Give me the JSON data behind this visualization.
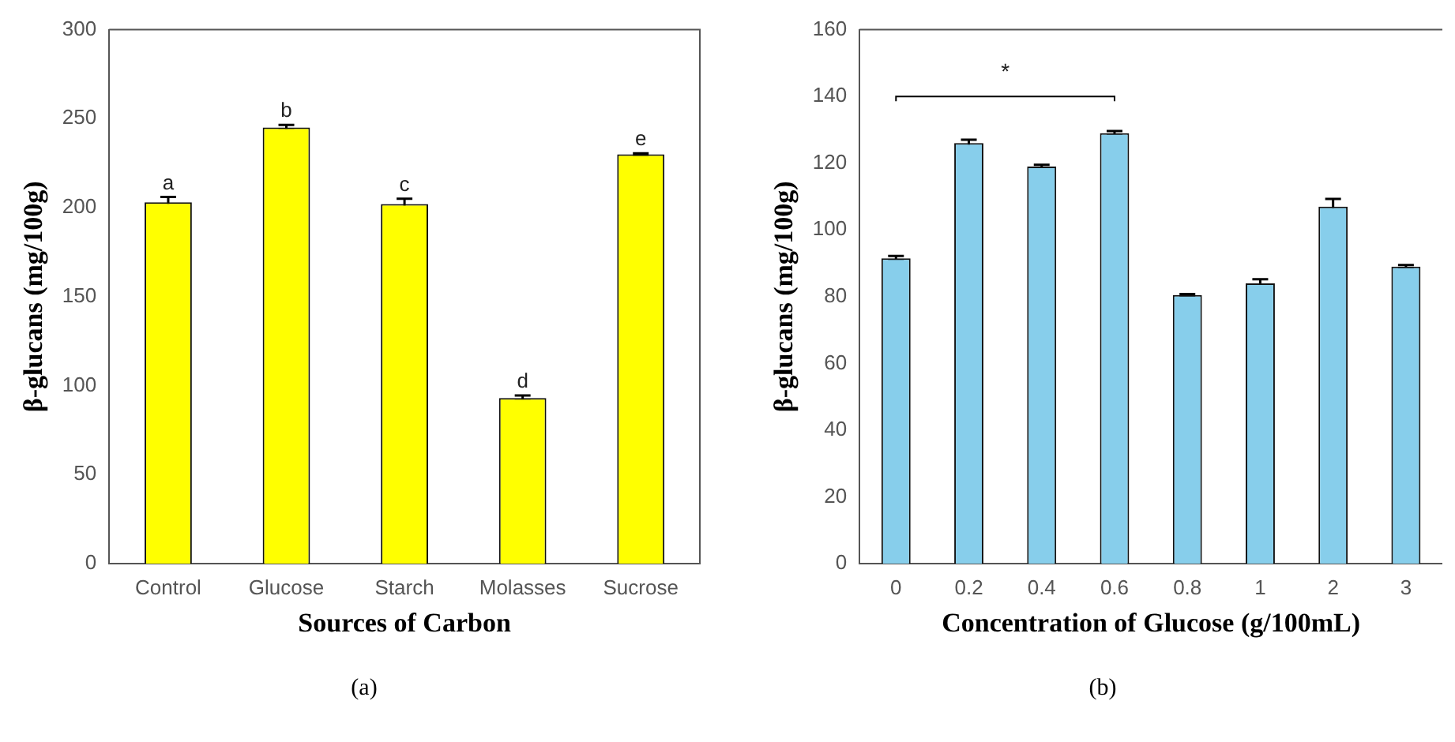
{
  "chart_data": [
    {
      "type": "bar",
      "categories": [
        "Control",
        "Glucose",
        "Starch",
        "Molasses",
        "Sucrose"
      ],
      "values": [
        203,
        245,
        202,
        93,
        230
      ],
      "errors": [
        3,
        1.5,
        3,
        1.5,
        0.5
      ],
      "value_labels": [
        "a",
        "b",
        "c",
        "d",
        "e"
      ],
      "color": "#ffff00",
      "xlabel": "Sources of Carbon",
      "ylabel": "β-glucans (mg/100g)",
      "ylim": [
        0,
        300
      ],
      "yticks": [
        0,
        50,
        100,
        150,
        200,
        250,
        300
      ],
      "grid": false,
      "legend": false,
      "annotations": [
        "(a)"
      ]
    },
    {
      "type": "bar",
      "categories": [
        "0",
        "0.2",
        "0.4",
        "0.6",
        "0.8",
        "1",
        "2",
        "3"
      ],
      "values": [
        91.5,
        126,
        119,
        129,
        80.5,
        84,
        107,
        89
      ],
      "errors": [
        0.7,
        1,
        0.5,
        0.6,
        0.3,
        1.2,
        2.3,
        0.5
      ],
      "color": "#87ceeb",
      "xlabel": "Concentration of Glucose (g/100mL)",
      "ylabel": "β-glucans (mg/100g)",
      "ylim": [
        0,
        160
      ],
      "yticks": [
        0,
        20,
        40,
        60,
        80,
        100,
        120,
        140,
        160
      ],
      "grid": false,
      "legend": false,
      "annotations": [
        "*",
        "(b)"
      ]
    }
  ]
}
